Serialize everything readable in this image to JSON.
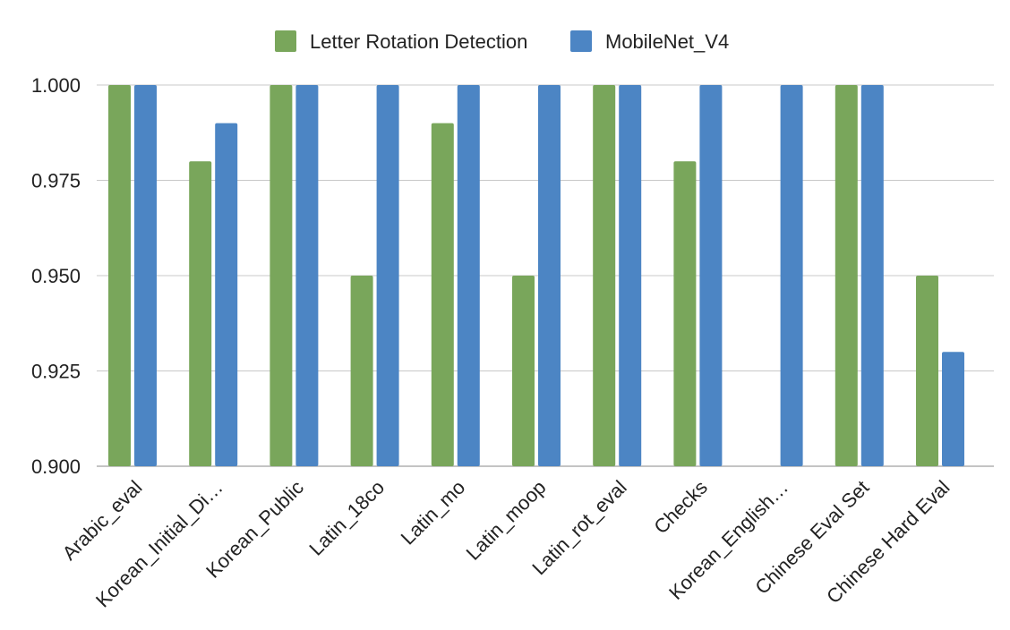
{
  "colors": {
    "series_1": "#79a65b",
    "series_2": "#4c85c4",
    "grid": "#c8c8c8",
    "axis": "#b0b0b0"
  },
  "chart_data": {
    "type": "bar",
    "title": "",
    "xlabel": "",
    "ylabel": "",
    "legend_position": "top-center",
    "grid": true,
    "ylim": [
      0.9,
      1.0
    ],
    "yticks": [
      "0.900",
      "0.925",
      "0.950",
      "0.975",
      "1.000"
    ],
    "categories": [
      "Arabic_eval",
      "Korean_Initial_Di…",
      "Korean_Public",
      "Latin_18co",
      "Latin_mo",
      "Latin_moop",
      "Latin_rot_eval",
      "Checks",
      "Korean_English…",
      "Chinese Eval Set",
      "Chinese Hard Eval"
    ],
    "series": [
      {
        "name": "Letter Rotation Detection",
        "values": [
          1.0,
          0.98,
          1.0,
          0.95,
          0.99,
          0.95,
          1.0,
          0.98,
          null,
          1.0,
          0.95
        ]
      },
      {
        "name": "MobileNet_V4",
        "values": [
          1.0,
          0.99,
          1.0,
          1.0,
          1.0,
          1.0,
          1.0,
          1.0,
          1.0,
          1.0,
          0.93
        ]
      }
    ]
  }
}
